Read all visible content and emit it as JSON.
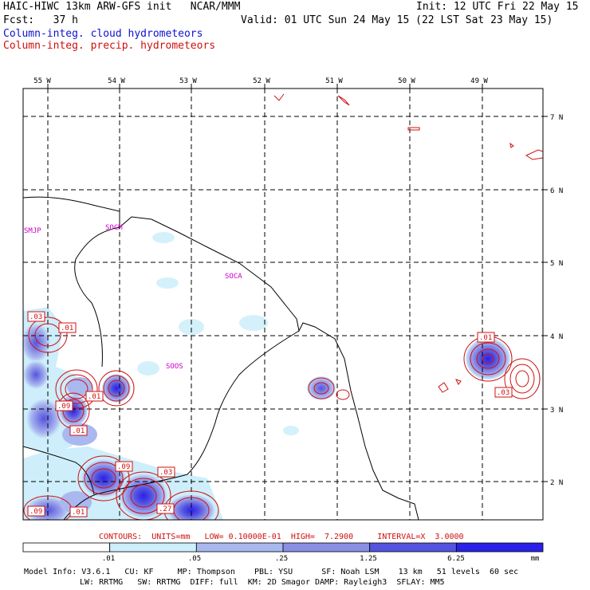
{
  "header": {
    "left_line1": "HAIC-HIWC 13km ARW-GFS init   NCAR/MMM",
    "left_line2": "Fcst:   37 h",
    "right_line1": "Init: 12 UTC Fri 22 May 15",
    "right_line2": "Valid: 01 UTC Sun 24 May 15 (22 LST Sat 23 May 15)",
    "legend_cloud": "Column-integ. cloud hydrometeors",
    "legend_precip": "Column-integ. precip. hydrometeors"
  },
  "map": {
    "lon_labels": [
      "55 W",
      "54 W",
      "53 W",
      "52 W",
      "51 W",
      "50 W",
      "49 W"
    ],
    "lat_labels": [
      "7 N",
      "6 N",
      "5 N",
      "4 N",
      "3 N",
      "2 N"
    ],
    "stations": [
      "SMJP",
      "SOCM",
      "SOCA",
      "SOOS"
    ],
    "contour_labels": [
      ".03",
      ".01",
      ".01",
      ".09",
      ".01",
      ".09",
      ".03",
      ".27",
      ".09",
      ".01",
      ".01",
      ".03"
    ]
  },
  "footer": {
    "contours_line": "CONTOURS:  UNITS=mm   LOW= 0.10000E-01  HIGH=  7.2900     INTERVAL=X  3.0000",
    "colorbar_ticks": [
      ".01",
      ".05",
      ".25",
      "1.25",
      "6.25"
    ],
    "colorbar_unit": "mm",
    "colorbar_colors": [
      "#ffffff",
      "#cdeefa",
      "#aab8f0",
      "#8a8fe6",
      "#5454e0",
      "#2a20e8"
    ],
    "model_line1": "Model Info: V3.6.1   CU: KF     MP: Thompson    PBL: YSU      SF: Noah LSM    13 km   51 levels  60 sec",
    "model_line2": "LW: RRTMG   SW: RRTMG  DIFF: full  KM: 2D Smagor DAMP: Rayleigh3  SFLAY: MM5"
  }
}
